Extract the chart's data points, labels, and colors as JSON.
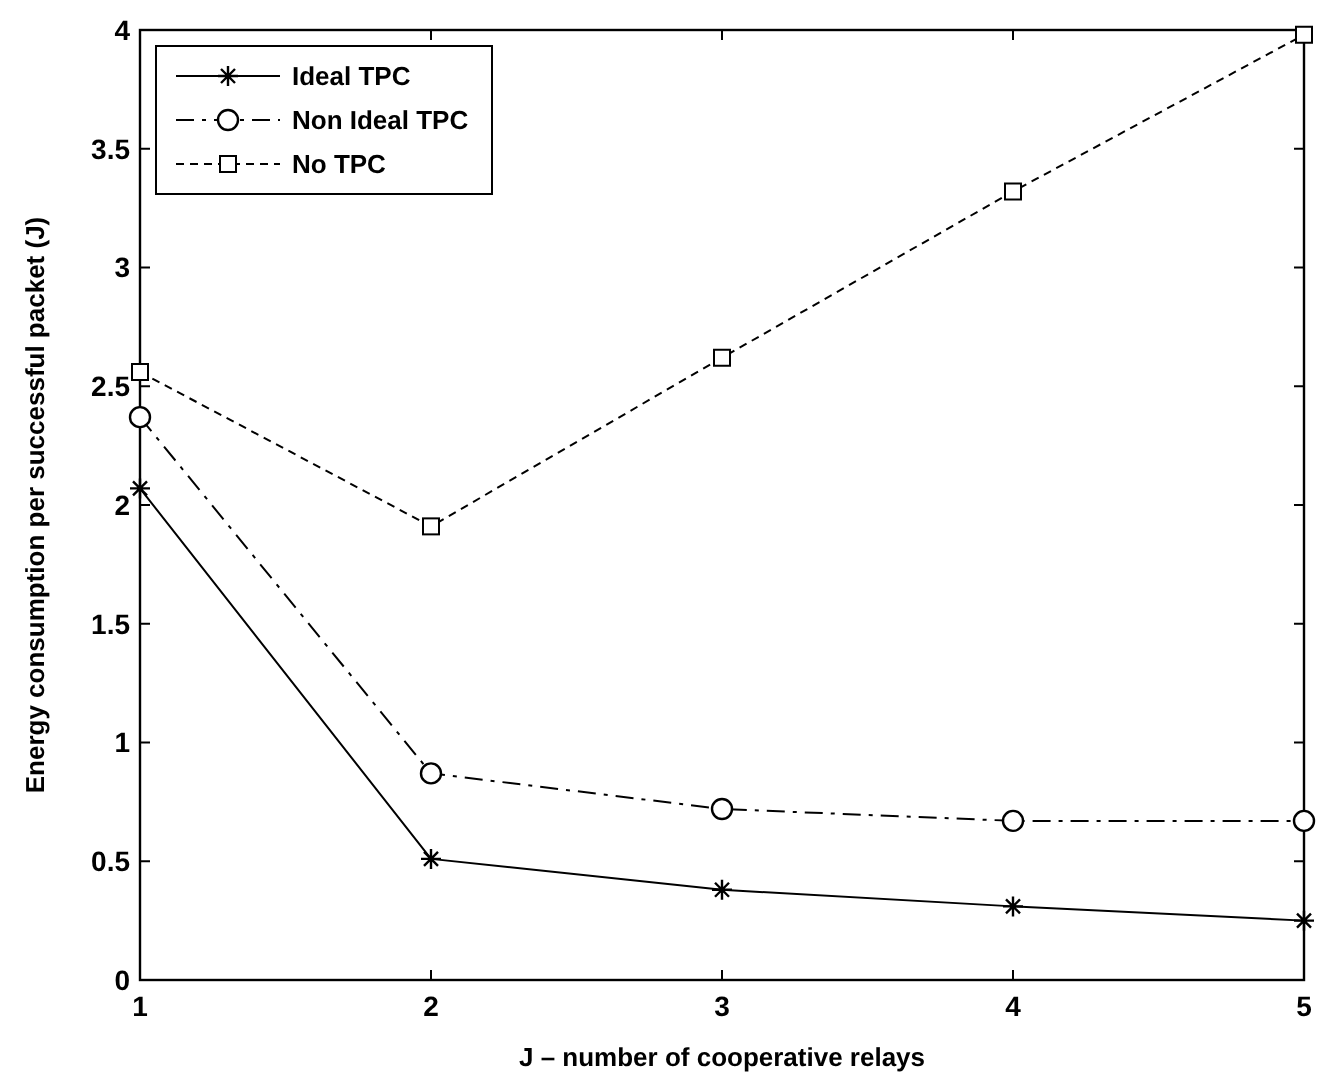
{
  "chart_data": {
    "type": "line",
    "xlabel": "J – number of cooperative relays",
    "ylabel": "Energy consumption per successful packet (J)",
    "x": [
      1,
      2,
      3,
      4,
      5
    ],
    "xlim": [
      1,
      5
    ],
    "xticks": [
      1,
      2,
      3,
      4,
      5
    ],
    "ylim": [
      0,
      4
    ],
    "yticks": [
      0,
      {
        "value": 0.5,
        "label": "0.5"
      },
      1,
      {
        "value": 1.5,
        "label": "1.5"
      },
      2,
      {
        "value": 2.5,
        "label": "2.5"
      },
      3,
      {
        "value": 3.5,
        "label": "3.5"
      },
      4
    ],
    "grid": false,
    "legend": "top left",
    "series": [
      {
        "name": "Ideal TPC",
        "color": "#000000",
        "values": [
          2.07,
          0.51,
          0.38,
          0.31,
          0.25
        ],
        "marker": "cross",
        "line_style": "solid"
      },
      {
        "name": "Non Ideal TPC",
        "color": "#000000",
        "values": [
          2.37,
          0.87,
          0.72,
          0.67,
          0.67
        ],
        "marker": "circle",
        "line_style": "dashed"
      },
      {
        "name": "No TPC",
        "color": "#000000",
        "values": [
          2.56,
          1.91,
          2.62,
          3.32,
          3.98
        ],
        "marker": "square",
        "line_style": "dotted"
      }
    ]
  }
}
